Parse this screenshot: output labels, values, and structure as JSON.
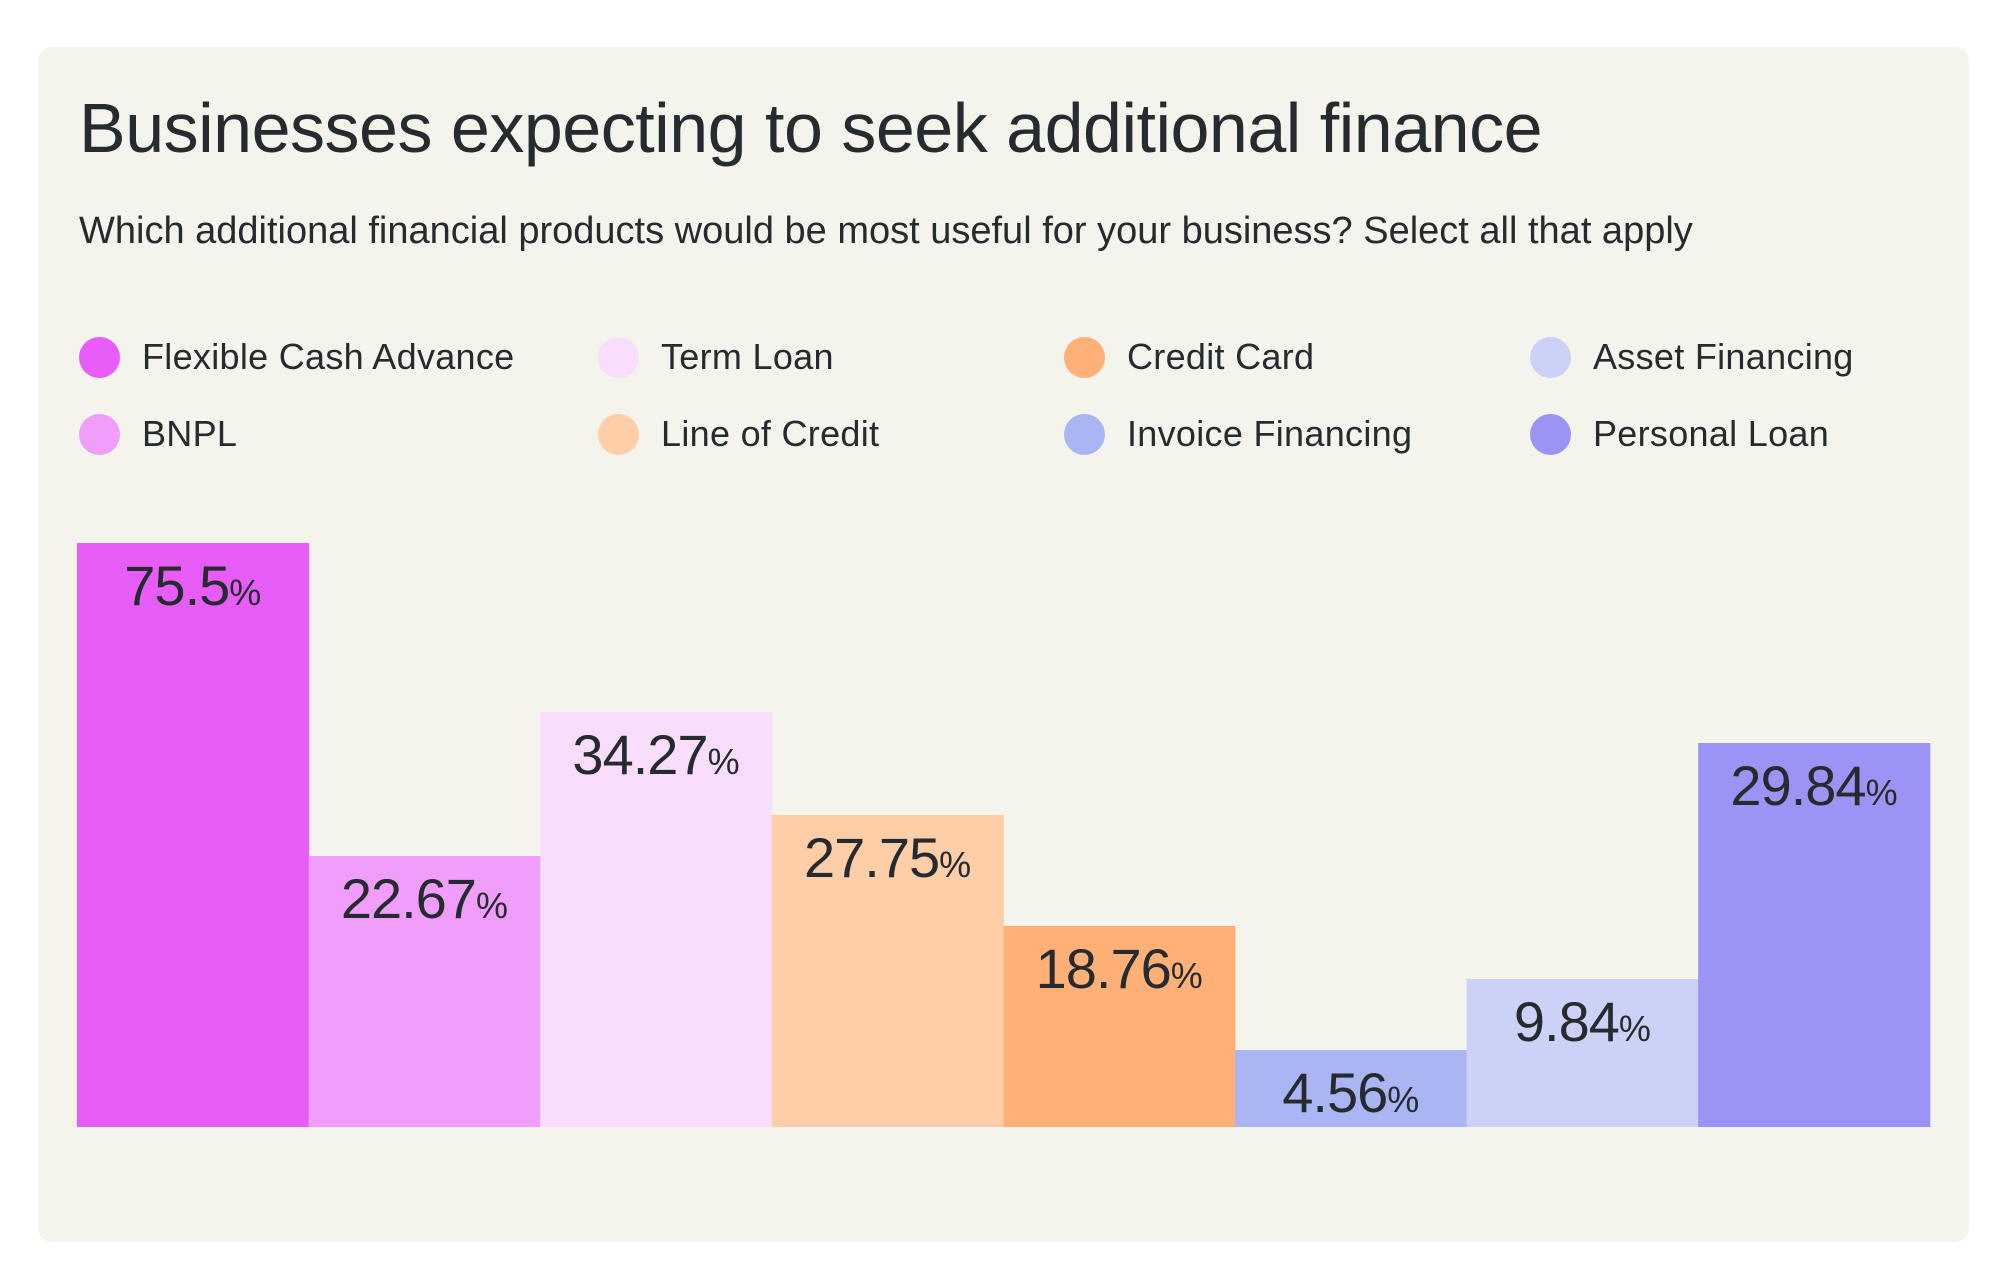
{
  "title": "Businesses expecting to seek additional finance",
  "subtitle": "Which additional financial products would be most useful for your business? Select all that apply",
  "chart_data": {
    "type": "bar",
    "title": "Businesses expecting to seek additional finance",
    "subtitle": "Which additional financial products would be most useful for your business? Select all that apply",
    "categories": [
      "Flexible Cash Advance",
      "BNPL",
      "Term Loan",
      "Line of Credit",
      "Credit Card",
      "Invoice Financing",
      "Asset Financing",
      "Personal Loan"
    ],
    "values": [
      75.5,
      22.67,
      34.27,
      27.75,
      18.76,
      4.56,
      9.84,
      29.84
    ],
    "value_labels": [
      "75.5",
      "22.67",
      "34.27",
      "27.75",
      "18.76",
      "4.56",
      "9.84",
      "29.84"
    ],
    "unit": "%",
    "colors": [
      "#E85CF8",
      "#F09DFB",
      "#F8DEFC",
      "#FDCEA8",
      "#FFB077",
      "#AAB5F3",
      "#CCD1F7",
      "#9C94F4"
    ],
    "legend_order": [
      0,
      2,
      4,
      6,
      1,
      3,
      5,
      7
    ],
    "legend_placement": "top",
    "grid": false,
    "xlabel": "",
    "ylabel": ""
  }
}
